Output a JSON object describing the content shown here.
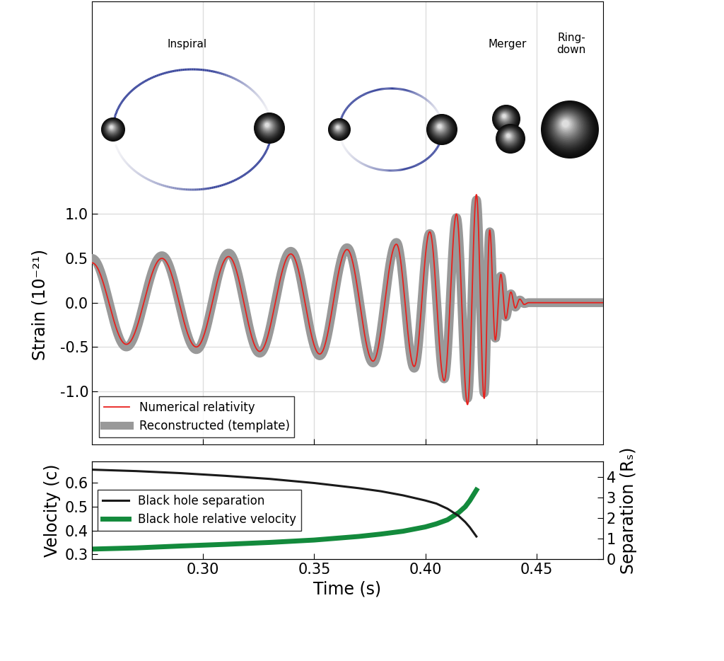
{
  "chart_data": [
    {
      "type": "line",
      "y_label": "Strain (10⁻²¹)",
      "annotations": [
        "Inspiral",
        "Merger",
        "Ring-\ndown"
      ],
      "x": [
        0.25,
        0.2655,
        0.2815,
        0.297,
        0.3115,
        0.3255,
        0.3395,
        0.3525,
        0.3648,
        0.3765,
        0.387,
        0.395,
        0.402,
        0.4085,
        0.414,
        0.419,
        0.423,
        0.4265,
        0.429,
        0.4315,
        0.434,
        0.4362,
        0.4385,
        0.4405,
        0.4425,
        0.4445,
        0.4465,
        0.48
      ],
      "series": [
        {
          "name": "Numerical relativity",
          "color": "#e8201c",
          "line_style": "solid",
          "values": [
            0.45,
            -0.47,
            0.5,
            -0.5,
            0.52,
            -0.55,
            0.55,
            -0.58,
            0.6,
            -0.66,
            0.66,
            -0.72,
            0.8,
            -0.88,
            1.0,
            -1.15,
            1.22,
            -1.08,
            0.82,
            -0.42,
            0.32,
            -0.18,
            0.12,
            -0.06,
            0.04,
            -0.02,
            0.0,
            0.0
          ]
        },
        {
          "name": "Reconstructed (template)",
          "color": "#999999",
          "line_style": "solid",
          "values": [
            0.5,
            -0.5,
            0.53,
            -0.53,
            0.56,
            -0.57,
            0.58,
            -0.6,
            0.62,
            -0.68,
            0.68,
            -0.74,
            0.78,
            -0.86,
            0.96,
            -1.08,
            1.16,
            -1.02,
            0.8,
            -0.4,
            0.3,
            -0.16,
            0.1,
            -0.05,
            0.03,
            -0.01,
            0.0,
            0.0
          ]
        }
      ],
      "xlim": [
        0.25,
        0.48
      ],
      "xticks": [
        0.3,
        0.35,
        0.4,
        0.45
      ],
      "ylim": [
        -1.6,
        3.4
      ],
      "yticks": [
        {
          "value": 1.0,
          "label": "1.0"
        },
        {
          "value": 0.5,
          "label": "0.5"
        },
        {
          "value": 0.0,
          "label": "0.0"
        },
        {
          "value": -0.5,
          "label": "-0.5"
        },
        {
          "value": -1.0,
          "label": "-1.0"
        }
      ],
      "tick_labels": "y",
      "grid": true,
      "legend": "lower left"
    },
    {
      "type": "line",
      "x_label": "Time (s)",
      "y_label": "Velocity (c)",
      "y2_label": "Separation (Rₛ)",
      "x": [
        0.25,
        0.27,
        0.29,
        0.31,
        0.33,
        0.35,
        0.37,
        0.38,
        0.39,
        0.4,
        0.405,
        0.41,
        0.415,
        0.418,
        0.42,
        0.423
      ],
      "series": [
        {
          "name": "Black hole separation",
          "color": "#1a1a1a",
          "axis": "y2",
          "values": [
            4.35,
            4.28,
            4.18,
            4.05,
            3.9,
            3.7,
            3.45,
            3.3,
            3.1,
            2.85,
            2.7,
            2.45,
            2.1,
            1.8,
            1.55,
            1.1
          ]
        },
        {
          "name": "Black hole relative velocity",
          "color": "#138a3c",
          "axis": "y",
          "values": [
            0.322,
            0.327,
            0.335,
            0.342,
            0.35,
            0.36,
            0.375,
            0.385,
            0.397,
            0.415,
            0.428,
            0.445,
            0.475,
            0.5,
            0.525,
            0.57
          ]
        }
      ],
      "xlim": [
        0.25,
        0.48
      ],
      "xticks": [
        {
          "value": 0.3,
          "label": "0.30"
        },
        {
          "value": 0.35,
          "label": "0.35"
        },
        {
          "value": 0.4,
          "label": "0.40"
        },
        {
          "value": 0.45,
          "label": "0.45"
        }
      ],
      "ylim": [
        0.28,
        0.69
      ],
      "yticks": [
        0.3,
        0.4,
        0.5,
        0.6
      ],
      "y2lim": [
        0,
        4.75
      ],
      "y2ticks": [
        0,
        1,
        2,
        3,
        4
      ],
      "grid": false,
      "legend": "center left"
    }
  ]
}
